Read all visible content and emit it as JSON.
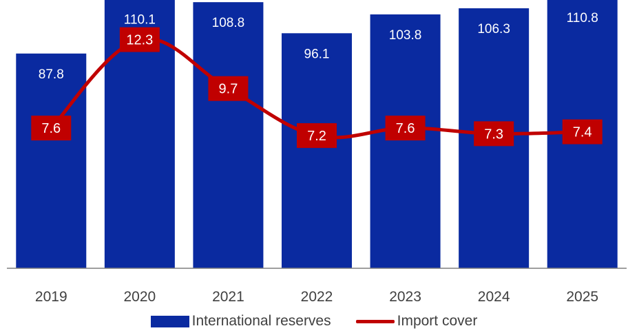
{
  "chart_data": {
    "type": "bar",
    "categories": [
      "2019",
      "2020",
      "2021",
      "2022",
      "2023",
      "2024",
      "2025"
    ],
    "ylim": [
      0,
      115
    ],
    "line_ylim": [
      0,
      13
    ],
    "grid": false,
    "legend_position": "bottom",
    "series": [
      {
        "name": "International reserves",
        "type": "bar",
        "values": [
          87.8,
          110.1,
          108.8,
          96.1,
          103.8,
          106.3,
          110.8
        ],
        "labels": [
          "87.8",
          "110.1",
          "108.8",
          "96.1",
          "103.8",
          "106.3",
          "110.8"
        ],
        "color": "#0a2aa0"
      },
      {
        "name": "Import cover",
        "type": "line",
        "values": [
          7.6,
          12.3,
          9.7,
          7.2,
          7.6,
          7.3,
          7.4
        ],
        "labels": [
          "7.6",
          "12.3",
          "9.7",
          "7.2",
          "7.6",
          "7.3",
          "7.4"
        ],
        "color": "#c00000"
      }
    ]
  }
}
